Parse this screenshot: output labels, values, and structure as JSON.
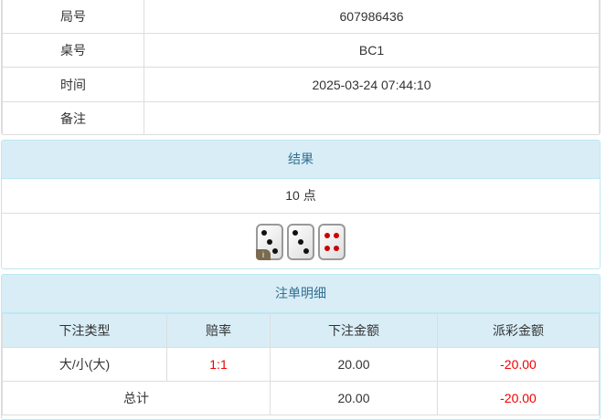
{
  "info": {
    "rows": [
      {
        "label": "局号",
        "value": "607986436"
      },
      {
        "label": "桌号",
        "value": "BC1"
      },
      {
        "label": "时间",
        "value": "2025-03-24 07:44:10"
      },
      {
        "label": "备注",
        "value": ""
      }
    ]
  },
  "result": {
    "title": "结果",
    "points": "10 点",
    "dice": [
      3,
      3,
      4
    ],
    "info_badge": "i"
  },
  "bets": {
    "title": "注单明细",
    "headers": [
      "下注类型",
      "赔率",
      "下注金额",
      "派彩金额"
    ],
    "rows": [
      {
        "type": "大/小(大)",
        "odds": "1:1",
        "amount": "20.00",
        "payout": "-20.00"
      }
    ],
    "total": {
      "label": "总计",
      "amount": "20.00",
      "payout": "-20.00"
    }
  },
  "colors": {
    "accent": "#d9edf7",
    "negative": "#ee0000"
  }
}
